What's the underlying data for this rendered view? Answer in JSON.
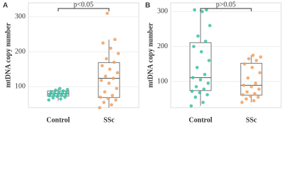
{
  "chart_data": [
    {
      "type": "box",
      "label": "A",
      "annotation": "p<0.05",
      "ylabel": "mtDNA copy number",
      "categories": [
        "Control",
        "SSc"
      ],
      "colors": [
        "#3cbfa5",
        "#f0a060"
      ],
      "ylim": [
        40,
        340
      ],
      "yticks": [
        100,
        200,
        300
      ],
      "grid": true,
      "boxes": [
        {
          "min": 60,
          "q1": 73,
          "median": 80,
          "q3": 88,
          "max": 95
        },
        {
          "min": 40,
          "q1": 69,
          "median": 124,
          "q3": 169,
          "max": 235
        }
      ],
      "points": [
        [
          62,
          65,
          68,
          70,
          72,
          74,
          75,
          76,
          78,
          79,
          80,
          81,
          82,
          84,
          85,
          86,
          88,
          90,
          92,
          95
        ],
        [
          40,
          48,
          55,
          62,
          66,
          70,
          75,
          85,
          95,
          110,
          118,
          124,
          130,
          140,
          150,
          160,
          170,
          180,
          195,
          210,
          225,
          235,
          310
        ]
      ]
    },
    {
      "type": "box",
      "label": "B",
      "annotation": "p>0.05",
      "ylabel": "mtDNA copy number",
      "categories": [
        "Control",
        "SSc"
      ],
      "colors": [
        "#3cbfa5",
        "#f0a060"
      ],
      "ylim": [
        25,
        325
      ],
      "yticks": [
        100,
        200,
        300
      ],
      "grid": true,
      "boxes": [
        {
          "min": 30,
          "q1": 74,
          "median": 111,
          "q3": 211,
          "max": 305
        },
        {
          "min": 40,
          "q1": 61,
          "median": 89,
          "q3": 152,
          "max": 175
        }
      ],
      "points": [
        [
          30,
          40,
          55,
          62,
          68,
          72,
          78,
          85,
          95,
          105,
          111,
          120,
          140,
          160,
          185,
          200,
          215,
          230,
          260,
          300,
          305,
          305
        ],
        [
          40,
          45,
          50,
          55,
          58,
          62,
          65,
          70,
          78,
          85,
          89,
          95,
          110,
          125,
          140,
          150,
          160,
          165,
          170,
          175
        ]
      ]
    }
  ]
}
